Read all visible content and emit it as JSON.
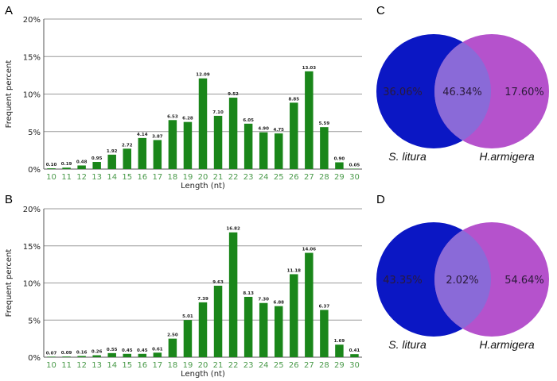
{
  "chart_data": [
    {
      "panel": "A",
      "type": "bar",
      "xlabel": "Length (nt)",
      "ylabel": "Frequent percent",
      "ylim": [
        0,
        20
      ],
      "yticks": [
        "0%",
        "5%",
        "10%",
        "15%",
        "20%"
      ],
      "grid": true,
      "categories": [
        "10",
        "11",
        "12",
        "13",
        "14",
        "15",
        "16",
        "17",
        "18",
        "19",
        "20",
        "21",
        "22",
        "23",
        "24",
        "25",
        "26",
        "27",
        "28",
        "29",
        "30"
      ],
      "values": [
        0.1,
        0.19,
        0.48,
        0.95,
        1.92,
        2.72,
        4.14,
        3.87,
        6.53,
        6.28,
        12.09,
        7.1,
        9.52,
        6.05,
        4.9,
        4.75,
        8.85,
        13.03,
        5.59,
        0.9,
        0.05
      ],
      "labels": [
        "0.10",
        "0.19",
        "0.48",
        "0.95",
        "1.92",
        "2.72",
        "4.14",
        "3.87",
        "6.53",
        "6.28",
        "12.09",
        "7.10",
        "9.52",
        "6.05",
        "4.90",
        "4.75",
        "8.85",
        "13.03",
        "5.59",
        "0.90",
        "0.05"
      ],
      "bar_color": "#1a861a",
      "tick_color": "#4a9a4a"
    },
    {
      "panel": "B",
      "type": "bar",
      "xlabel": "Length (nt)",
      "ylabel": "Frequent percent",
      "ylim": [
        0,
        20
      ],
      "yticks": [
        "0%",
        "5%",
        "10%",
        "15%",
        "20%"
      ],
      "grid": true,
      "categories": [
        "10",
        "11",
        "12",
        "13",
        "14",
        "15",
        "16",
        "17",
        "18",
        "19",
        "20",
        "21",
        "22",
        "23",
        "24",
        "25",
        "26",
        "27",
        "28",
        "29",
        "30"
      ],
      "values": [
        0.07,
        0.09,
        0.16,
        0.26,
        0.55,
        0.45,
        0.45,
        0.61,
        2.5,
        5.01,
        7.39,
        9.63,
        16.82,
        8.13,
        7.3,
        6.88,
        11.18,
        14.06,
        6.37,
        1.69,
        0.41
      ],
      "labels": [
        "0.07",
        "0.09",
        "0.16",
        "0.26",
        "0.55",
        "0.45",
        "0.45",
        "0.61",
        "2.50",
        "5.01",
        "7.39",
        "9.63",
        "16.82",
        "8.13",
        "7.30",
        "6.88",
        "11.18",
        "14.06",
        "6.37",
        "1.69",
        "0.41"
      ],
      "bar_color": "#1a861a",
      "tick_color": "#4a9a4a"
    },
    {
      "panel": "C",
      "type": "venn",
      "sets": [
        "S. litura",
        "H.armigera"
      ],
      "regions": {
        "left_only": "36.06%",
        "overlap": "46.34%",
        "right_only": "17.60%"
      },
      "colors": {
        "left": "#0b17c4",
        "right": "#b552cc",
        "overlap": "#8a6ad8"
      }
    },
    {
      "panel": "D",
      "type": "venn",
      "sets": [
        "S. litura",
        "H.armigera"
      ],
      "regions": {
        "left_only": "43.35%",
        "overlap": "2.02%",
        "right_only": "54.64%"
      },
      "colors": {
        "left": "#0b17c4",
        "right": "#b552cc",
        "overlap": "#8a6ad8"
      }
    }
  ]
}
